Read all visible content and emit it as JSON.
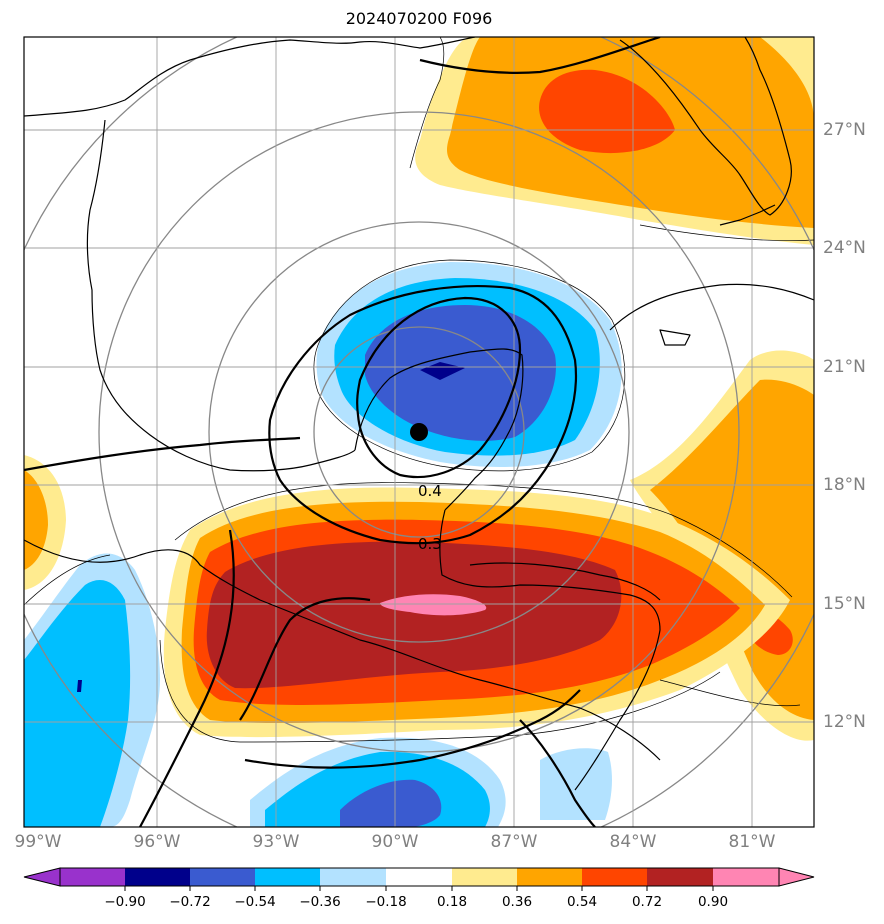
{
  "title": "2024070200 F096",
  "map": {
    "lon_labels": [
      "99°W",
      "96°W",
      "93°W",
      "90°W",
      "87°W",
      "84°W",
      "81°W"
    ],
    "lat_labels": [
      "27°N",
      "24°N",
      "21°N",
      "18°N",
      "15°N",
      "12°N"
    ],
    "contour_labels": [
      "0.4",
      "0.3"
    ],
    "storm_center_marker": "black-dot",
    "colors": {
      "c_n090": "#9932cc",
      "c_n072": "#00008b",
      "c_n054": "#3a5bd0",
      "c_n036": "#00bfff",
      "c_n018": "#b3e2ff",
      "c_zero": "#ffffff",
      "c_p018": "#ffeb8f",
      "c_p036": "#ffa500",
      "c_p054": "#ff4500",
      "c_p072": "#b22222",
      "c_p090": "#ff85b3"
    }
  },
  "colorbar": {
    "ticks": [
      "−0.90",
      "−0.72",
      "−0.54",
      "−0.36",
      "−0.18",
      "0.18",
      "0.36",
      "0.54",
      "0.72",
      "0.90"
    ]
  }
}
